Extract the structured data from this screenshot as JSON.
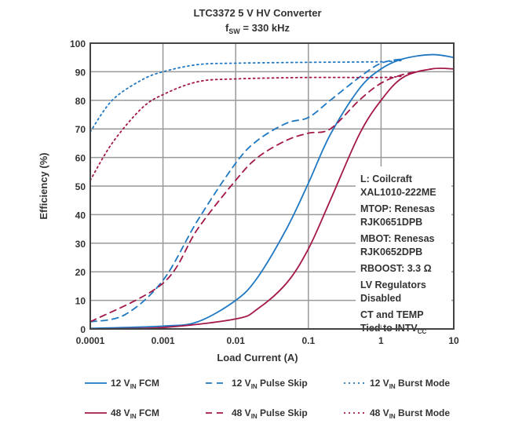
{
  "chart_data": {
    "type": "line",
    "title": "LTC3372 5 V HV Converter",
    "subtitle": {
      "main": "f",
      "sub": "SW",
      "rest": " = 330 kHz"
    },
    "xlabel": "Load Current (A)",
    "ylabel": "Efficiency (%)",
    "xscale": "log",
    "xlim": [
      0.0001,
      10
    ],
    "ylim": [
      0,
      100
    ],
    "grid": true,
    "xticks": [
      "0.0001",
      "0.001",
      "0.01",
      "0.1",
      "1",
      "10"
    ],
    "yticks": [
      "0",
      "10",
      "20",
      "30",
      "40",
      "50",
      "60",
      "70",
      "80",
      "90",
      "100"
    ],
    "annotation": [
      {
        "text": "L: Coilcraft"
      },
      {
        "text": "XAL1010-222ME"
      },
      {
        "text": "MTOP: Renesas"
      },
      {
        "text": "RJK0651DPB"
      },
      {
        "text": "MBOT: Renesas"
      },
      {
        "text": "RJK0652DPB"
      },
      {
        "text": "RBOOST: 3.3 Ω"
      },
      {
        "text": "LV Regulators"
      },
      {
        "text": "Disabled"
      },
      {
        "text": "CT and TEMP"
      },
      {
        "text": "Tied to INTV",
        "sub": "CC"
      }
    ],
    "legend_placement": "bottom",
    "series": [
      {
        "name": "12 VIN FCM",
        "legend": [
          "12 V",
          "IN",
          " FCM"
        ],
        "color": "#1f78c1",
        "style": "solid",
        "x": [
          0.0001,
          0.001,
          0.003,
          0.01,
          0.02,
          0.05,
          0.1,
          0.2,
          0.5,
          1,
          2,
          5,
          10
        ],
        "y": [
          0.2,
          1,
          2.5,
          10,
          18,
          35,
          51,
          68,
          84,
          91,
          94.5,
          96,
          95
        ]
      },
      {
        "name": "12 VIN Pulse Skip",
        "legend": [
          "12 V",
          "IN",
          " Pulse Skip"
        ],
        "color": "#1f78c1",
        "style": "dash",
        "x": [
          0.0001,
          0.0003,
          0.001,
          0.003,
          0.01,
          0.02,
          0.05,
          0.1,
          0.2,
          0.5,
          1,
          2
        ],
        "y": [
          2.5,
          5,
          17,
          38,
          58,
          66,
          72,
          74,
          80,
          88,
          93,
          94.5
        ]
      },
      {
        "name": "12 VIN Burst Mode",
        "legend": [
          "12 V",
          "IN",
          " Burst Mode"
        ],
        "color": "#1f78c1",
        "style": "dot",
        "x": [
          0.0001,
          0.0002,
          0.0005,
          0.001,
          0.003,
          0.01,
          0.1,
          1,
          2
        ],
        "y": [
          69,
          80,
          87,
          90,
          92.5,
          93,
          93.3,
          93.5,
          94
        ]
      },
      {
        "name": "48 VIN FCM",
        "legend": [
          "48 V",
          "IN",
          " FCM"
        ],
        "color": "#a3174b",
        "style": "solid",
        "x": [
          0.0001,
          0.001,
          0.01,
          0.02,
          0.05,
          0.1,
          0.2,
          0.5,
          1,
          2,
          5,
          10
        ],
        "y": [
          0,
          0.5,
          3.5,
          7,
          16,
          28,
          45,
          68,
          80,
          88,
          91,
          91
        ]
      },
      {
        "name": "48 VIN Pulse Skip",
        "legend": [
          "48 V",
          "IN",
          " Pulse Skip"
        ],
        "color": "#a3174b",
        "style": "dash",
        "x": [
          0.0001,
          0.001,
          0.003,
          0.01,
          0.02,
          0.05,
          0.1,
          0.2,
          0.5,
          1,
          2,
          5
        ],
        "y": [
          2.5,
          16,
          35,
          52,
          60,
          66,
          68.5,
          70,
          80,
          86,
          89,
          91
        ]
      },
      {
        "name": "48 VIN Burst Mode",
        "legend": [
          "48 V",
          "IN",
          " Burst Mode"
        ],
        "color": "#a3174b",
        "style": "dot",
        "x": [
          0.0001,
          0.0002,
          0.0005,
          0.001,
          0.003,
          0.01,
          0.1,
          1,
          2
        ],
        "y": [
          52,
          65,
          77,
          82,
          86.5,
          87.5,
          88,
          88,
          88.5
        ]
      }
    ]
  }
}
